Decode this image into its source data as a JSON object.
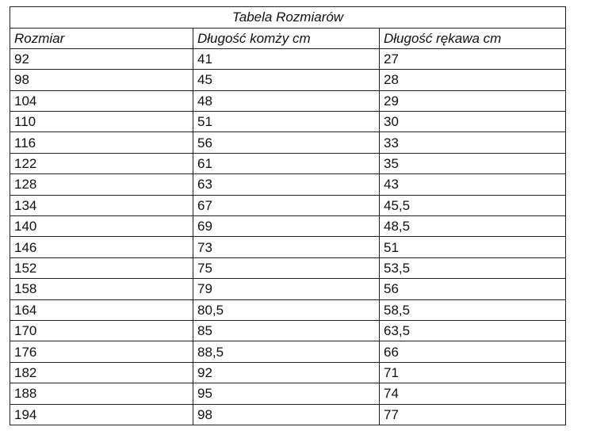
{
  "table": {
    "title": "Tabela Rozmiarów",
    "headers": [
      "Rozmiar",
      "Długość komży cm",
      "Długość rękawa cm"
    ],
    "rows": [
      [
        "92",
        "41",
        "27"
      ],
      [
        "98",
        "45",
        "28"
      ],
      [
        "104",
        "48",
        "29"
      ],
      [
        "110",
        "51",
        "30"
      ],
      [
        "116",
        "56",
        "33"
      ],
      [
        "122",
        "61",
        "35"
      ],
      [
        "128",
        "63",
        "43"
      ],
      [
        "134",
        "67",
        "45,5"
      ],
      [
        "140",
        "69",
        "48,5"
      ],
      [
        "146",
        "73",
        "51"
      ],
      [
        "152",
        "75",
        "53,5"
      ],
      [
        "158",
        "79",
        "56"
      ],
      [
        "164",
        "80,5",
        "58,5"
      ],
      [
        "170",
        "85",
        "63,5"
      ],
      [
        "176",
        "88,5",
        "66"
      ],
      [
        "182",
        "92",
        "71"
      ],
      [
        "188",
        "95",
        "74"
      ],
      [
        "194",
        "98",
        "77"
      ]
    ]
  }
}
